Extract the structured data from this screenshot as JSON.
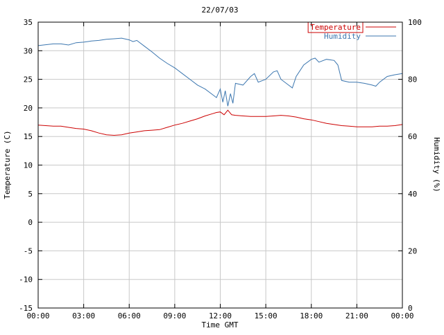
{
  "chart_data": {
    "type": "line",
    "title": "22/07/03",
    "xlabel": "Time GMT",
    "x_range": [
      0,
      24
    ],
    "x_ticks": [
      {
        "pos": 0,
        "label": "00:00"
      },
      {
        "pos": 3,
        "label": "03:00"
      },
      {
        "pos": 6,
        "label": "06:00"
      },
      {
        "pos": 9,
        "label": "09:00"
      },
      {
        "pos": 12,
        "label": "12:00"
      },
      {
        "pos": 15,
        "label": "15:00"
      },
      {
        "pos": 18,
        "label": "18:00"
      },
      {
        "pos": 21,
        "label": "21:00"
      },
      {
        "pos": 24,
        "label": "00:00"
      }
    ],
    "left_axis": {
      "label": "Temperature (C)",
      "range": [
        -15,
        35
      ],
      "ticks": [
        -15,
        -10,
        -5,
        0,
        5,
        10,
        15,
        20,
        25,
        30,
        35
      ]
    },
    "right_axis": {
      "label": "Humidity (%)",
      "range": [
        0,
        100
      ],
      "ticks": [
        0,
        20,
        40,
        60,
        80,
        100
      ]
    },
    "grid": true,
    "legend_position": "top-right",
    "colors": {
      "grid": "#c8c8c8",
      "axis": "#000000",
      "background": "#ffffff",
      "temperature": "#cc0000",
      "humidity": "#3b76af"
    },
    "series": [
      {
        "name": "Temperature",
        "color": "#cc0000",
        "axis": "left",
        "unit": "C",
        "boxed_legend": true,
        "points": [
          [
            0,
            17.0
          ],
          [
            0.5,
            16.9
          ],
          [
            1,
            16.8
          ],
          [
            1.5,
            16.8
          ],
          [
            2,
            16.6
          ],
          [
            2.5,
            16.4
          ],
          [
            3,
            16.3
          ],
          [
            3.5,
            16.0
          ],
          [
            4,
            15.6
          ],
          [
            4.5,
            15.3
          ],
          [
            5,
            15.2
          ],
          [
            5.5,
            15.3
          ],
          [
            6,
            15.6
          ],
          [
            6.5,
            15.8
          ],
          [
            7,
            16.0
          ],
          [
            7.5,
            16.1
          ],
          [
            8,
            16.2
          ],
          [
            8.5,
            16.6
          ],
          [
            9,
            17.0
          ],
          [
            9.5,
            17.3
          ],
          [
            10,
            17.7
          ],
          [
            10.5,
            18.1
          ],
          [
            11,
            18.6
          ],
          [
            11.5,
            19.0
          ],
          [
            11.75,
            19.2
          ],
          [
            12,
            19.3
          ],
          [
            12.25,
            18.8
          ],
          [
            12.5,
            19.6
          ],
          [
            12.75,
            18.8
          ],
          [
            13,
            18.7
          ],
          [
            13.5,
            18.6
          ],
          [
            14,
            18.5
          ],
          [
            14.5,
            18.5
          ],
          [
            15,
            18.5
          ],
          [
            15.5,
            18.6
          ],
          [
            16,
            18.7
          ],
          [
            16.5,
            18.6
          ],
          [
            17,
            18.4
          ],
          [
            17.5,
            18.1
          ],
          [
            18,
            17.9
          ],
          [
            18.5,
            17.6
          ],
          [
            19,
            17.3
          ],
          [
            19.5,
            17.1
          ],
          [
            20,
            16.9
          ],
          [
            20.5,
            16.8
          ],
          [
            21,
            16.7
          ],
          [
            21.5,
            16.7
          ],
          [
            22,
            16.7
          ],
          [
            22.5,
            16.8
          ],
          [
            23,
            16.8
          ],
          [
            23.5,
            16.9
          ],
          [
            24,
            17.1
          ]
        ]
      },
      {
        "name": "Humidity",
        "color": "#3b76af",
        "axis": "right",
        "unit": "%",
        "boxed_legend": false,
        "points": [
          [
            0,
            91.8
          ],
          [
            0.5,
            92.1
          ],
          [
            1,
            92.4
          ],
          [
            1.5,
            92.4
          ],
          [
            2,
            92.0
          ],
          [
            2.5,
            92.8
          ],
          [
            3,
            93.0
          ],
          [
            3.5,
            93.4
          ],
          [
            4,
            93.6
          ],
          [
            4.5,
            94.0
          ],
          [
            5,
            94.2
          ],
          [
            5.5,
            94.4
          ],
          [
            6,
            93.8
          ],
          [
            6.25,
            93.2
          ],
          [
            6.5,
            93.6
          ],
          [
            7,
            91.6
          ],
          [
            7.5,
            89.6
          ],
          [
            8,
            87.4
          ],
          [
            8.5,
            85.6
          ],
          [
            9,
            84.0
          ],
          [
            9.5,
            82.0
          ],
          [
            10,
            80.0
          ],
          [
            10.5,
            78.0
          ],
          [
            11,
            76.6
          ],
          [
            11.5,
            74.6
          ],
          [
            11.75,
            73.6
          ],
          [
            12,
            76.6
          ],
          [
            12.17,
            72.0
          ],
          [
            12.33,
            76.0
          ],
          [
            12.5,
            70.6
          ],
          [
            12.67,
            75.0
          ],
          [
            12.83,
            71.6
          ],
          [
            13,
            78.6
          ],
          [
            13.5,
            78.0
          ],
          [
            14,
            81.0
          ],
          [
            14.25,
            82.0
          ],
          [
            14.5,
            79.0
          ],
          [
            15,
            80.0
          ],
          [
            15.5,
            82.6
          ],
          [
            15.75,
            83.0
          ],
          [
            16,
            80.0
          ],
          [
            16.5,
            78.0
          ],
          [
            16.75,
            77.0
          ],
          [
            17,
            81.0
          ],
          [
            17.5,
            85.0
          ],
          [
            18,
            87.0
          ],
          [
            18.25,
            87.4
          ],
          [
            18.5,
            86.0
          ],
          [
            19,
            87.0
          ],
          [
            19.5,
            86.6
          ],
          [
            19.75,
            85.0
          ],
          [
            20,
            79.6
          ],
          [
            20.5,
            79.0
          ],
          [
            21,
            79.0
          ],
          [
            21.5,
            78.6
          ],
          [
            22,
            78.0
          ],
          [
            22.25,
            77.6
          ],
          [
            22.5,
            79.0
          ],
          [
            23,
            81.0
          ],
          [
            23.5,
            81.6
          ],
          [
            24,
            82.0
          ]
        ]
      }
    ]
  }
}
